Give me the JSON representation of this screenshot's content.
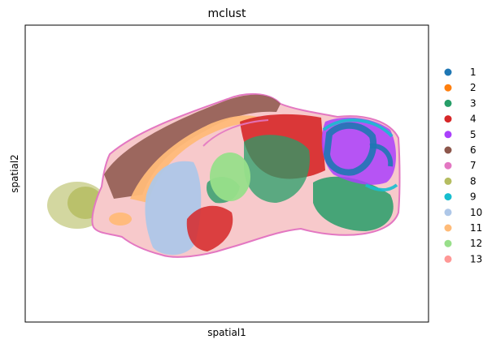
{
  "chart_data": {
    "type": "scatter",
    "title": "mclust",
    "xlabel": "spatial1",
    "ylabel": "spatial2",
    "xticks": [],
    "yticks": [],
    "grid": false,
    "legend_position": "right",
    "series": [
      {
        "name": "1",
        "color": "#1f77b4"
      },
      {
        "name": "2",
        "color": "#ff7f0e"
      },
      {
        "name": "3",
        "color": "#279e68"
      },
      {
        "name": "4",
        "color": "#d62728"
      },
      {
        "name": "5",
        "color": "#aa40fc"
      },
      {
        "name": "6",
        "color": "#8c564b"
      },
      {
        "name": "7",
        "color": "#e377c2"
      },
      {
        "name": "8",
        "color": "#b5bd61"
      },
      {
        "name": "9",
        "color": "#17becf"
      },
      {
        "name": "10",
        "color": "#aec7e8"
      },
      {
        "name": "11",
        "color": "#ffbb78"
      },
      {
        "name": "12",
        "color": "#98df8a"
      },
      {
        "name": "13",
        "color": "#ff9896"
      }
    ]
  }
}
